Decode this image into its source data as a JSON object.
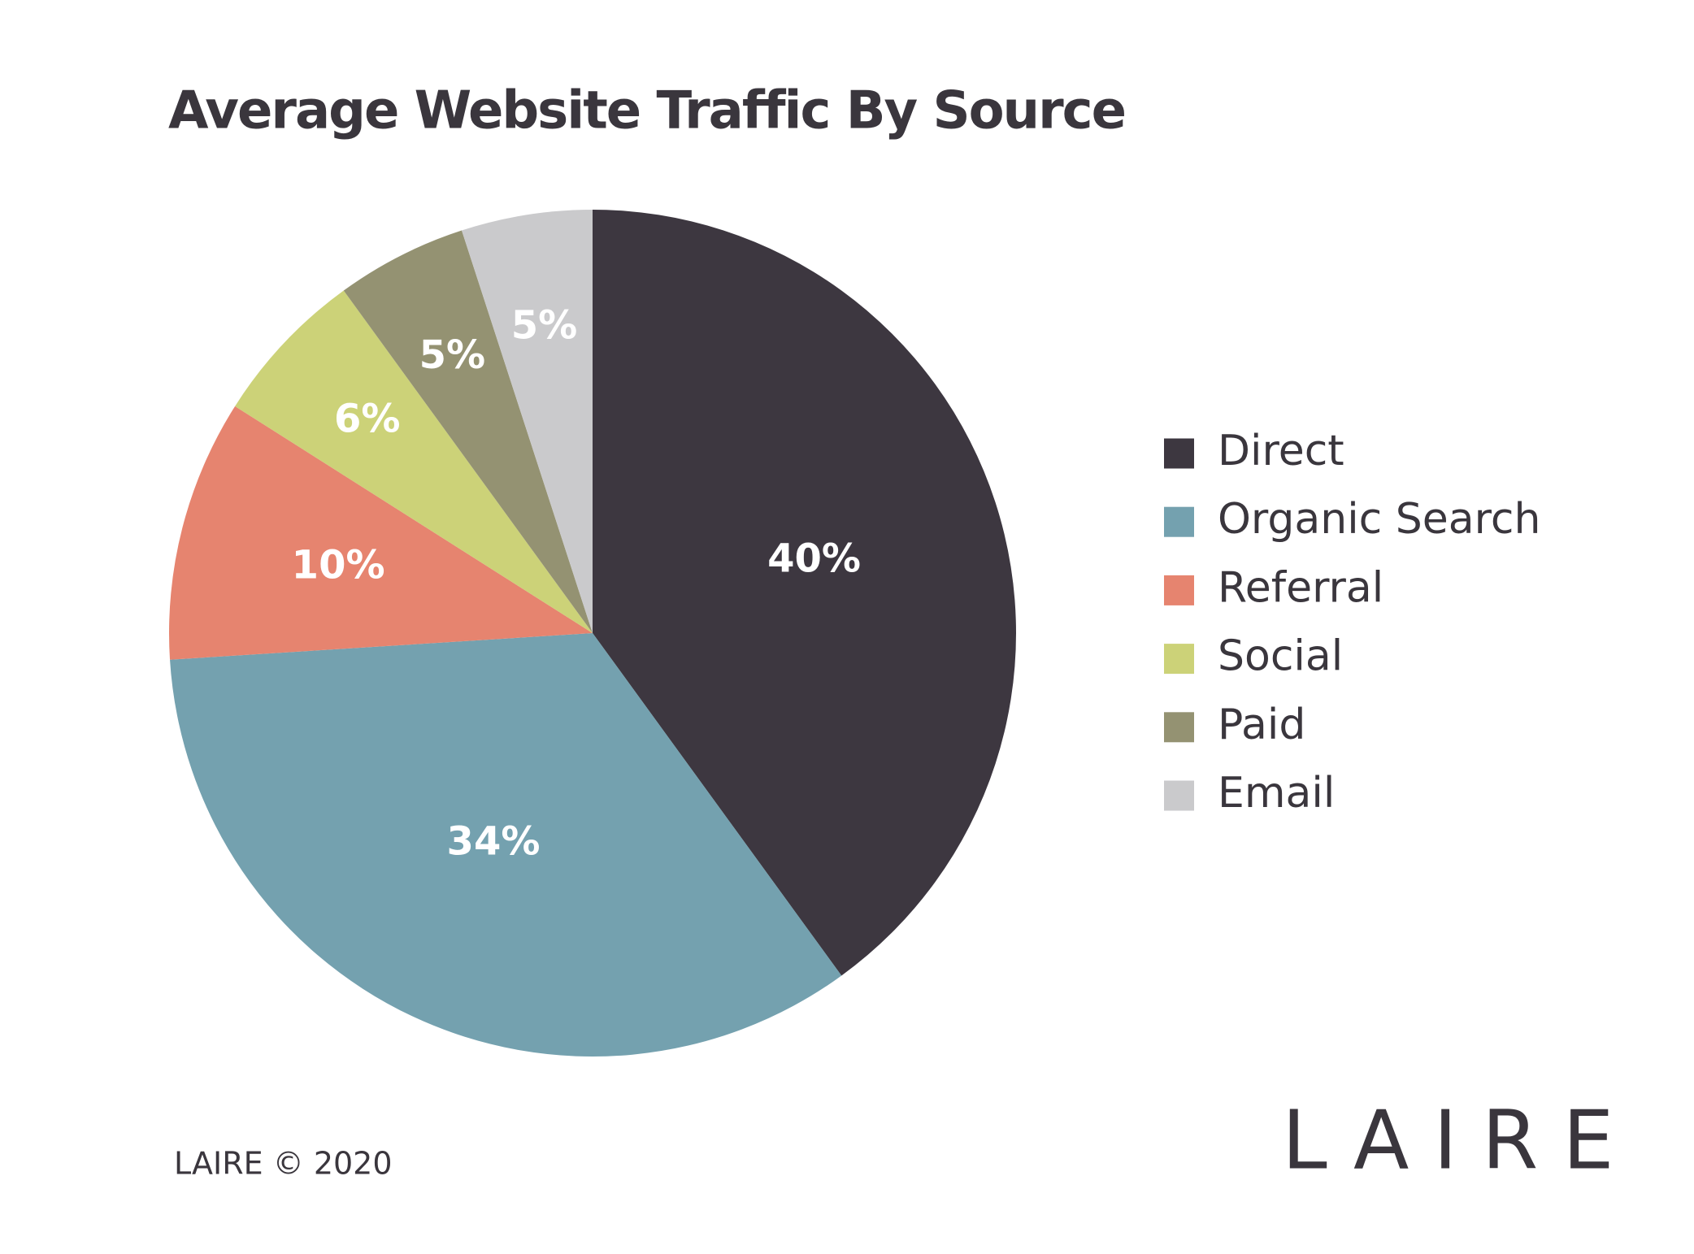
{
  "chart_data": {
    "type": "pie",
    "title": "Average Website Traffic By Source",
    "categories": [
      "Direct",
      "Organic Search",
      "Referral",
      "Social",
      "Paid",
      "Email"
    ],
    "values": [
      40,
      34,
      10,
      6,
      5,
      5
    ],
    "value_labels": [
      "40%",
      "34%",
      "10%",
      "6%",
      "5%",
      "5%"
    ],
    "colors": [
      "#3d3740",
      "#74a1af",
      "#e6846f",
      "#ccd278",
      "#949272",
      "#cacacc"
    ],
    "legend": "right"
  },
  "footer": "LAIRE © 2020",
  "logo": "LAIRE"
}
